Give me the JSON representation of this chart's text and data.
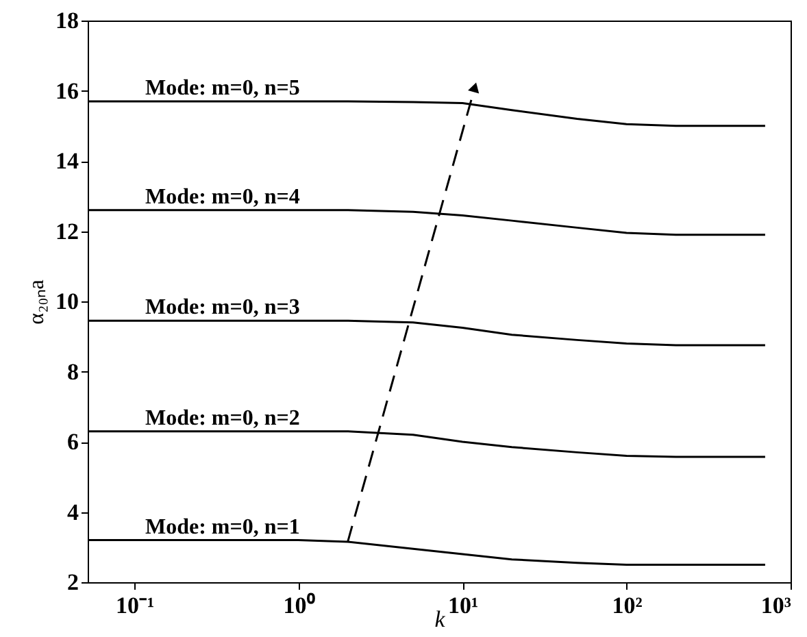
{
  "chart_data": {
    "type": "line",
    "xlabel": "k",
    "ylabel": "α₂₀ₙa",
    "log": "x",
    "grid": false,
    "marker": "none",
    "line_style": "solid",
    "xlim": [
      0.052,
      1000
    ],
    "ylim": [
      2,
      18
    ],
    "xticks": [
      {
        "value": 0.1,
        "label": "10⁻¹"
      },
      {
        "value": 1,
        "label": "10⁰"
      },
      {
        "value": 10,
        "label": "10¹"
      },
      {
        "value": 100,
        "label": "10²"
      },
      {
        "value": 1000,
        "label": "10³"
      }
    ],
    "yticks": [
      2,
      4,
      6,
      8,
      10,
      12,
      14,
      16,
      18
    ],
    "x": [
      0.052,
      1,
      2,
      5,
      10,
      20,
      50,
      100,
      200,
      700
    ],
    "series": [
      {
        "color": "#000000",
        "values": [
          3.2,
          3.2,
          3.15,
          2.95,
          2.8,
          2.65,
          2.55,
          2.5,
          2.5,
          2.5
        ]
      },
      {
        "color": "#000000",
        "values": [
          6.3,
          6.3,
          6.3,
          6.2,
          6.0,
          5.85,
          5.7,
          5.6,
          5.57,
          5.57
        ]
      },
      {
        "color": "#000000",
        "values": [
          9.45,
          9.45,
          9.45,
          9.4,
          9.25,
          9.05,
          8.9,
          8.8,
          8.75,
          8.75
        ]
      },
      {
        "color": "#000000",
        "values": [
          12.6,
          12.6,
          12.6,
          12.55,
          12.45,
          12.3,
          12.1,
          11.95,
          11.9,
          11.9
        ]
      },
      {
        "color": "#000000",
        "values": [
          15.7,
          15.7,
          15.7,
          15.68,
          15.65,
          15.45,
          15.2,
          15.05,
          15.0,
          15.0
        ]
      },
      {
        "type": "line",
        "color": "#000000",
        "line_style": "dashed",
        "marker": "triangle",
        "x": [
          2,
          11.9
        ],
        "values": [
          3.15,
          16.1
        ]
      }
    ],
    "annotations": [
      {
        "text": "Mode: m=0, n=1",
        "y": 3.2
      },
      {
        "text": "Mode: m=0, n=2",
        "y": 6.3
      },
      {
        "text": "Mode: m=0, n=3",
        "y": 9.45
      },
      {
        "text": "Mode: m=0, n=4",
        "y": 12.6
      },
      {
        "text": "Mode: m=0, n=5",
        "y": 15.7
      }
    ]
  }
}
